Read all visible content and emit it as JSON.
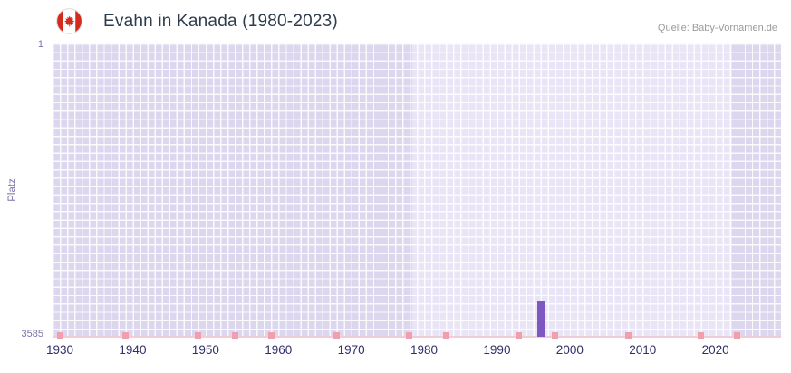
{
  "header": {
    "title": "Evahn in Kanada (1980-2023)",
    "source": "Quelle: Baby-Vornamen.de",
    "flag_icon": "canada-flag-icon"
  },
  "chart_data": {
    "type": "bar",
    "title": "Evahn in Kanada (1980-2023)",
    "xlabel": "",
    "ylabel": "Platz",
    "y_axis": {
      "min": 1,
      "max": 3585,
      "inverted": true,
      "top_label": "1",
      "bottom_label": "3585"
    },
    "x_axis": {
      "range": [
        1929,
        2029
      ],
      "ticks": [
        1930,
        1940,
        1950,
        1960,
        1970,
        1980,
        1990,
        2000,
        2010,
        2020
      ]
    },
    "series": [
      {
        "name": "Platz",
        "color": "#7e57c2",
        "points": [
          {
            "year": 1996,
            "rank": 3155
          }
        ]
      }
    ],
    "no_rank_marker_years": [
      1930,
      1939,
      1949,
      1954,
      1959,
      1968,
      1978,
      1983,
      1993,
      1998,
      2008,
      2018,
      2023
    ],
    "plot_bands": [
      {
        "from": 1929,
        "to": 1978.7,
        "style": "dark"
      },
      {
        "from": 1978.7,
        "to": 2022.8,
        "style": "light"
      },
      {
        "from": 2022.8,
        "to": 2029,
        "style": "dark"
      }
    ],
    "grid": true,
    "legend": "none"
  },
  "colors": {
    "title": "#2e3d4d",
    "source": "#9a9a9a",
    "x-label": "#2f2f6b",
    "y-label": "#7d70ab",
    "band-dark": "#dcd7ee",
    "band-light": "#e9e5f6",
    "grid": "#ffffff",
    "bar": "#7e57c2",
    "marker": "#f09fae",
    "axis-line": "#eecdd6",
    "flag-red": "#d52b1e"
  }
}
